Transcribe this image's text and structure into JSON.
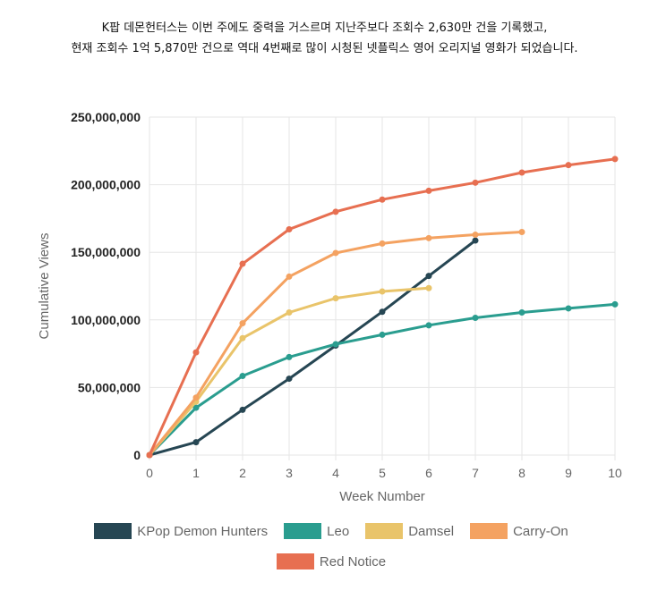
{
  "caption": {
    "line1": "K팝 데몬헌터스는 이번 주에도 중력을 거스르며 지난주보다 조회수 2,630만 건을 기록했고,",
    "line2": "현재 조회수 1억 5,870만 건으로 역대 4번째로 많이 시청된 넷플릭스 영어 오리지널 영화가 되었습니다."
  },
  "chart_data": {
    "type": "line",
    "xlabel": "Week Number",
    "ylabel": "Cumulative Views",
    "xlim": [
      0,
      10
    ],
    "ylim": [
      0,
      250000000
    ],
    "x_ticks": [
      0,
      1,
      2,
      3,
      4,
      5,
      6,
      7,
      8,
      9,
      10
    ],
    "y_ticks": [
      0,
      50000000,
      100000000,
      150000000,
      200000000,
      250000000
    ],
    "y_tick_labels": [
      "0",
      "50,000,000",
      "100,000,000",
      "150,000,000",
      "200,000,000",
      "250,000,000"
    ],
    "grid": true,
    "legend_position": "bottom",
    "series": [
      {
        "name": "KPop Demon Hunters",
        "color": "#264653",
        "x": [
          0,
          1,
          2,
          3,
          4,
          5,
          6,
          7
        ],
        "values": [
          0,
          9500000,
          33500000,
          56500000,
          81000000,
          106000000,
          132500000,
          158700000
        ]
      },
      {
        "name": "Leo",
        "color": "#2a9d8f",
        "x": [
          0,
          1,
          2,
          3,
          4,
          5,
          6,
          7,
          8,
          9,
          10
        ],
        "values": [
          0,
          35000000,
          58500000,
          72500000,
          82000000,
          89000000,
          96000000,
          101500000,
          105500000,
          108500000,
          111500000
        ]
      },
      {
        "name": "Damsel",
        "color": "#e9c46a",
        "x": [
          0,
          1,
          2,
          3,
          4,
          5,
          6
        ],
        "values": [
          0,
          39500000,
          86500000,
          105500000,
          116000000,
          121000000,
          123500000
        ]
      },
      {
        "name": "Carry-On",
        "color": "#f4a261",
        "x": [
          0,
          1,
          2,
          3,
          4,
          5,
          6,
          7,
          8
        ],
        "values": [
          0,
          42500000,
          97500000,
          132000000,
          149500000,
          156500000,
          160500000,
          163000000,
          165000000
        ]
      },
      {
        "name": "Red Notice",
        "color": "#e76f51",
        "x": [
          0,
          1,
          2,
          3,
          4,
          5,
          6,
          7,
          8,
          9,
          10
        ],
        "values": [
          0,
          76000000,
          141500000,
          167000000,
          180000000,
          189000000,
          195500000,
          201500000,
          209000000,
          214500000,
          219000000
        ]
      }
    ]
  }
}
